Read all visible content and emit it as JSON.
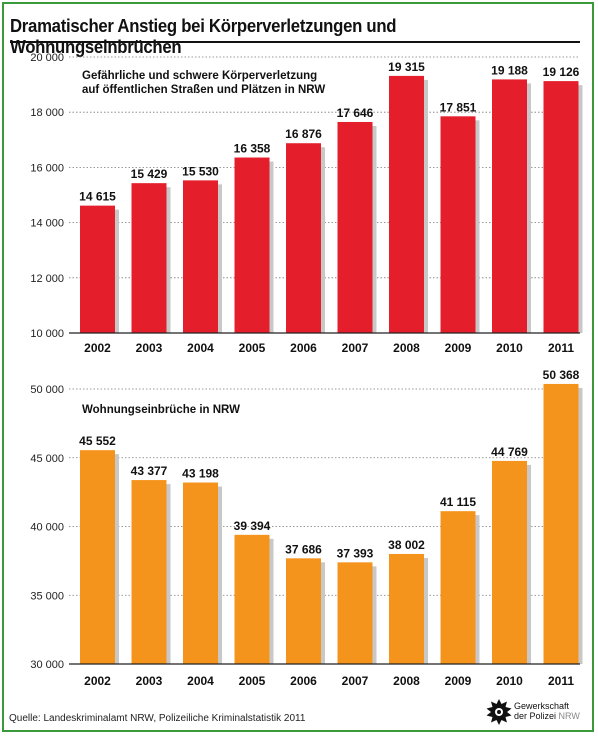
{
  "title": "Dramatischer Anstieg bei Körperverletzungen und Wohnungseinbrüchen",
  "source": "Quelle: Landeskriminalamt NRW, Polizeiliche Kriminalstatistik 2011",
  "logo": {
    "line1": "Gewerkschaft",
    "line2a": "der Polizei",
    "line2b": "NRW"
  },
  "colors": {
    "frame": "#3a9a3a",
    "top_bars": "#e41e2b",
    "bottom_bars": "#f5941d",
    "shadow": "#c8c8c8"
  },
  "chart_data": [
    {
      "type": "bar",
      "title": "Gefährliche und schwere Körperverletzung auf öffentlichen Straßen und Plätzen in NRW",
      "title_lines": [
        "Gefährliche und schwere Körperverletzung",
        "auf öffentlichen Straßen und Plätzen in NRW"
      ],
      "categories": [
        "2002",
        "2003",
        "2004",
        "2005",
        "2006",
        "2007",
        "2008",
        "2009",
        "2010",
        "2011"
      ],
      "values": [
        14615,
        15429,
        15530,
        16358,
        16876,
        17646,
        19315,
        17851,
        19188,
        19126
      ],
      "value_labels": [
        "14 615",
        "15 429",
        "15 530",
        "16 358",
        "16 876",
        "17 646",
        "19 315",
        "17 851",
        "19 188",
        "19 126"
      ],
      "ylim": [
        10000,
        20000
      ],
      "yticks": [
        10000,
        12000,
        14000,
        16000,
        18000,
        20000
      ],
      "ytick_labels": [
        "10 000",
        "12 000",
        "14 000",
        "16 000",
        "18 000",
        "20 000"
      ],
      "grid": true,
      "xlabel": "",
      "ylabel": ""
    },
    {
      "type": "bar",
      "title": "Wohnungseinbrüche in NRW",
      "title_lines": [
        "Wohnungseinbrüche in NRW"
      ],
      "categories": [
        "2002",
        "2003",
        "2004",
        "2005",
        "2006",
        "2007",
        "2008",
        "2009",
        "2010",
        "2011"
      ],
      "values": [
        45552,
        43377,
        43198,
        39394,
        37686,
        37393,
        38002,
        41115,
        44769,
        50368
      ],
      "value_labels": [
        "45 552",
        "43 377",
        "43 198",
        "39 394",
        "37 686",
        "37 393",
        "38 002",
        "41 115",
        "44 769",
        "50 368"
      ],
      "ylim": [
        30000,
        50000
      ],
      "yticks": [
        30000,
        35000,
        40000,
        45000,
        50000
      ],
      "ytick_labels": [
        "30 000",
        "35 000",
        "40 000",
        "45 000",
        "50 000"
      ],
      "grid": true,
      "xlabel": "",
      "ylabel": ""
    }
  ]
}
